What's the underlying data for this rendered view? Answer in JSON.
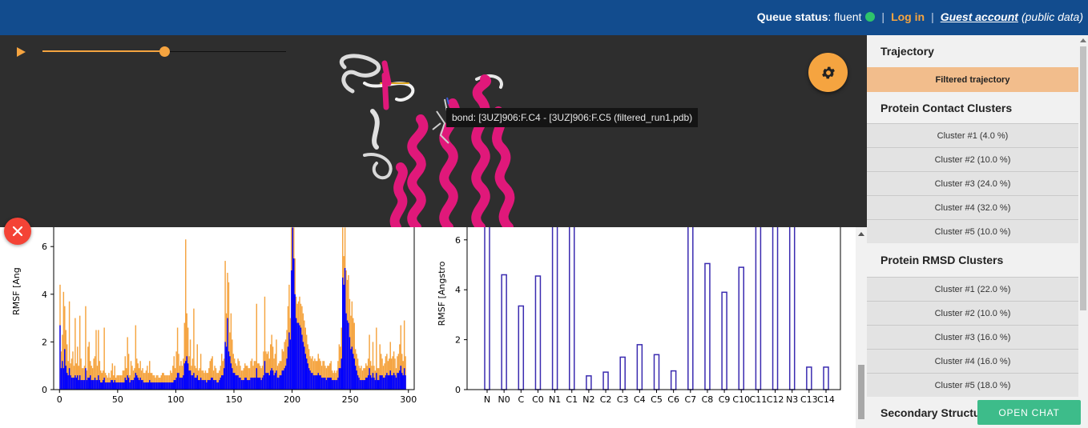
{
  "header": {
    "queue_label": "Queue status",
    "queue_value": "fluent",
    "queue_status_color": "#2ec46b",
    "login": "Log in",
    "guest": "Guest account",
    "public_data": "(public data)"
  },
  "viewer": {
    "playback_progress": 0.5,
    "tooltip": "bond: [3UZ]906:F.C4 - [3UZ]906:F.C5 (filtered_run1.pdb)",
    "settings_icon": "gear-icon",
    "play_icon": "play-icon"
  },
  "sidebar": {
    "trajectory_title": "Trajectory",
    "filtered_button": "Filtered trajectory",
    "contact_title": "Protein Contact Clusters",
    "contact_clusters": [
      "Cluster #1 (4.0 %)",
      "Cluster #2 (10.0 %)",
      "Cluster #3 (24.0 %)",
      "Cluster #4 (32.0 %)",
      "Cluster #5 (10.0 %)"
    ],
    "rmsd_title": "Protein RMSD Clusters",
    "rmsd_clusters": [
      "Cluster #1 (22.0 %)",
      "Cluster #2 (10.0 %)",
      "Cluster #3 (16.0 %)",
      "Cluster #4 (16.0 %)",
      "Cluster #5 (18.0 %)"
    ],
    "secondary_title": "Secondary Structure"
  },
  "chat_button": "OPEN CHAT",
  "colors": {
    "accent": "#f5a440",
    "header": "#124c8e",
    "protein_helix": "#e0187a",
    "rmsf_fill": "#0000ff",
    "close_button": "#f44336",
    "chat_button": "#3dbc8a"
  },
  "chart_data": [
    {
      "type": "bar",
      "ylabel": "RMSF [Ang",
      "x_ticks": [
        "0",
        "50",
        "100",
        "150",
        "200",
        "250",
        "300"
      ],
      "y_ticks": [
        "0",
        "2",
        "4",
        "6"
      ],
      "xlim": [
        -5,
        305
      ],
      "ylim": [
        0,
        6.8
      ],
      "series": [
        {
          "color": "#f5a440",
          "values": [
            4.4,
            1.6,
            2.3,
            4.1,
            3.5,
            2.5,
            1.9,
            1.2,
            3.7,
            1.1,
            1.3,
            1.6,
            1.0,
            3.0,
            1.1,
            1.8,
            1.0,
            3.1,
            1.3,
            0.9,
            0.9,
            1.0,
            3.5,
            0.8,
            1.8,
            2.0,
            1.2,
            1.0,
            0.9,
            1.3,
            1.4,
            2.5,
            1.0,
            2.5,
            1.2,
            0.8,
            0.7,
            0.8,
            2.6,
            0.7,
            0.6,
            0.5,
            0.7,
            0.5,
            0.8,
            1.1,
            0.6,
            1.0,
            0.5,
            0.6,
            0.6,
            0.6,
            0.6,
            0.6,
            0.8,
            0.8,
            1.4,
            0.9,
            2.2,
            1.5,
            0.6,
            1.2,
            1.0,
            0.8,
            0.9,
            2.7,
            1.3,
            1.1,
            0.9,
            1.2,
            0.8,
            0.9,
            0.7,
            0.7,
            0.8,
            1.0,
            0.7,
            1.2,
            0.7,
            0.7,
            0.6,
            0.6,
            0.5,
            0.6,
            0.6,
            0.5,
            0.5,
            0.6,
            0.7,
            0.7,
            0.6,
            0.6,
            0.6,
            0.6,
            0.6,
            0.8,
            0.7,
            1.0,
            1.4,
            0.9,
            1.6,
            2.6,
            1.5,
            1.0,
            1.2,
            1.0,
            1.3,
            2.8,
            6.3,
            3.2,
            2.6,
            1.4,
            2.1,
            1.0,
            1.3,
            3.4,
            1.0,
            0.9,
            1.9,
            0.8,
            0.9,
            1.5,
            0.8,
            0.8,
            0.7,
            0.8,
            0.7,
            0.7,
            0.9,
            1.2,
            1.3,
            1.4,
            0.8,
            1.0,
            0.9,
            0.7,
            0.7,
            0.8,
            1.0,
            1.5,
            1.2,
            1.3,
            5.4,
            3.2,
            4.9,
            4.5,
            2.4,
            3.2,
            2.1,
            1.5,
            1.3,
            1.1,
            1.0,
            1.3,
            1.2,
            1.0,
            0.8,
            0.8,
            0.9,
            1.1,
            1.0,
            1.0,
            0.9,
            0.9,
            1.2,
            1.3,
            1.0,
            1.2,
            1.2,
            3.6,
            1.1,
            1.1,
            1.0,
            0.9,
            1.0,
            1.6,
            3.9,
            1.6,
            1.5,
            1.6,
            1.3,
            1.9,
            2.3,
            1.8,
            1.3,
            1.5,
            2.1,
            1.0,
            1.1,
            1.2,
            1.2,
            1.7,
            1.6,
            2.0,
            2.1,
            2.5,
            3.5,
            4.4,
            3.0,
            7.2,
            7.2,
            7.0,
            5.5,
            3.9,
            3.6,
            3.7,
            3.9,
            3.6,
            3.5,
            3.2,
            2.9,
            2.6,
            2.3,
            1.9,
            1.7,
            1.4,
            1.3,
            1.4,
            1.2,
            1.3,
            1.2,
            1.2,
            1.5,
            1.3,
            1.2,
            1.0,
            1.2,
            1.2,
            1.0,
            0.9,
            1.0,
            1.0,
            1.1,
            1.2,
            0.8,
            0.7,
            0.8,
            0.7,
            0.8,
            1.2,
            1.9,
            1.8,
            2.6,
            7.2,
            5.6,
            7.2,
            5.0,
            4.6,
            4.8,
            3.8,
            3.1,
            3.7,
            3.0,
            2.8,
            1.7,
            1.5,
            1.3,
            1.0,
            0.9,
            1.0,
            0.8,
            0.9,
            0.9,
            1.1,
            1.0,
            1.3,
            2.3,
            1.2,
            1.0,
            2.0,
            1.0,
            0.8,
            2.6,
            0.9,
            0.9,
            1.9,
            1.5,
            1.3,
            1.0,
            1.1,
            1.4,
            1.5,
            1.2,
            1.3,
            2.0,
            1.3,
            1.4,
            1.6,
            1.3,
            0.9,
            1.4,
            1.5,
            1.9,
            2.7,
            1.5,
            1.2,
            2.9,
            1.4
          ]
        },
        {
          "color": "#0000ff",
          "values": [
            2.7,
            0.9,
            1.2,
            0.9,
            1.7,
            1.0,
            0.7,
            0.6,
            0.9,
            0.6,
            0.5,
            0.5,
            0.5,
            0.6,
            0.5,
            0.6,
            0.4,
            0.6,
            0.4,
            0.4,
            0.4,
            0.4,
            0.9,
            0.4,
            0.5,
            0.5,
            0.6,
            0.4,
            0.4,
            0.4,
            0.5,
            0.4,
            0.4,
            0.6,
            0.4,
            0.3,
            0.3,
            0.4,
            0.5,
            0.3,
            0.3,
            0.3,
            0.3,
            0.3,
            0.4,
            0.4,
            0.3,
            0.4,
            0.3,
            0.3,
            0.3,
            0.3,
            0.3,
            0.3,
            0.3,
            0.3,
            0.5,
            0.4,
            0.6,
            0.5,
            0.3,
            0.4,
            0.4,
            0.4,
            0.5,
            0.7,
            0.6,
            0.5,
            0.4,
            0.5,
            0.4,
            0.4,
            0.3,
            0.3,
            0.3,
            0.3,
            0.3,
            0.4,
            0.3,
            0.3,
            0.3,
            0.3,
            0.3,
            0.3,
            0.3,
            0.3,
            0.3,
            0.3,
            0.3,
            0.3,
            0.3,
            0.3,
            0.3,
            0.3,
            0.3,
            0.3,
            0.3,
            0.3,
            0.4,
            0.4,
            0.5,
            0.7,
            0.7,
            0.5,
            0.5,
            0.5,
            0.6,
            1.1,
            1.2,
            1.4,
            1.1,
            0.8,
            0.8,
            0.6,
            0.6,
            0.7,
            0.5,
            0.5,
            0.6,
            0.4,
            0.4,
            0.5,
            0.4,
            0.4,
            0.4,
            0.4,
            0.3,
            0.4,
            0.4,
            0.4,
            0.5,
            0.5,
            0.4,
            0.4,
            0.4,
            0.3,
            0.3,
            0.4,
            0.5,
            0.6,
            0.6,
            0.9,
            2.0,
            1.8,
            3.0,
            1.6,
            1.4,
            1.1,
            0.9,
            0.7,
            0.7,
            0.6,
            0.6,
            0.6,
            0.5,
            0.5,
            0.4,
            0.4,
            0.4,
            0.5,
            0.5,
            0.4,
            0.4,
            0.4,
            0.5,
            0.5,
            0.5,
            0.5,
            0.5,
            0.9,
            0.5,
            0.5,
            0.5,
            0.4,
            0.5,
            0.6,
            1.2,
            0.7,
            0.7,
            0.7,
            0.6,
            0.8,
            0.9,
            0.8,
            0.6,
            0.7,
            0.8,
            0.5,
            0.5,
            0.6,
            0.6,
            0.8,
            0.8,
            0.9,
            1.0,
            1.3,
            1.8,
            2.4,
            2.1,
            5.0,
            6.8,
            5.5,
            4.0,
            3.0,
            2.8,
            2.8,
            2.7,
            2.6,
            2.3,
            2.0,
            1.8,
            1.5,
            1.3,
            1.1,
            0.9,
            0.8,
            0.7,
            0.7,
            0.6,
            0.6,
            0.6,
            0.6,
            0.7,
            0.6,
            0.6,
            0.5,
            0.5,
            0.5,
            0.5,
            0.4,
            0.5,
            0.5,
            0.5,
            0.5,
            0.4,
            0.4,
            0.4,
            0.4,
            0.4,
            0.5,
            0.9,
            0.9,
            1.3,
            4.7,
            4.4,
            5.1,
            3.2,
            2.9,
            2.8,
            2.2,
            1.7,
            1.8,
            1.5,
            1.3,
            1.0,
            0.8,
            0.6,
            0.5,
            0.4,
            0.4,
            0.4,
            0.4,
            0.4,
            0.5,
            0.5,
            0.6,
            0.9,
            0.6,
            0.5,
            0.7,
            0.5,
            0.4,
            0.7,
            0.4,
            0.4,
            0.6,
            0.6,
            0.6,
            0.5,
            0.5,
            0.6,
            0.7,
            0.6,
            0.6,
            0.8,
            0.6,
            0.6,
            0.7,
            0.6,
            0.5,
            0.7,
            0.7,
            0.8,
            1.0,
            0.7,
            0.6,
            0.9,
            0.6
          ]
        }
      ]
    },
    {
      "type": "bar",
      "ylabel": "RMSF [Angstro",
      "categories": [
        "N",
        "N0",
        "C",
        "C0",
        "N1",
        "C1",
        "N2",
        "C2",
        "C3",
        "C4",
        "C5",
        "C6",
        "C7",
        "C8",
        "C9",
        "C10",
        "C11",
        "C12",
        "N3",
        "C13",
        "C14"
      ],
      "values": [
        7.2,
        4.6,
        3.35,
        4.55,
        7.2,
        7.2,
        0.55,
        0.7,
        1.3,
        1.8,
        1.4,
        0.75,
        7.2,
        5.05,
        3.9,
        4.9,
        7.2,
        7.2,
        7.2,
        0.9,
        0.9
      ],
      "y_ticks": [
        "0",
        "2",
        "4",
        "6"
      ],
      "ylim": [
        0,
        6.8
      ]
    }
  ]
}
